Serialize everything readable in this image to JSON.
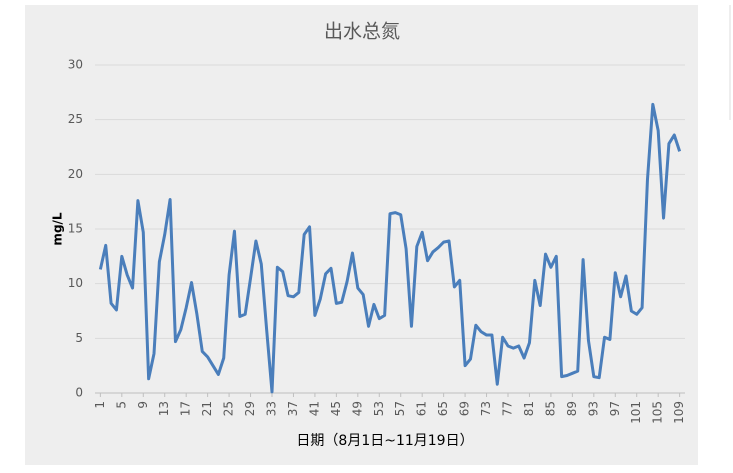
{
  "chart_data": {
    "type": "line",
    "title": "出水总氮",
    "x_label": "日期（8月1日~11月19日）",
    "y_label": "mg/L",
    "x": [
      1,
      2,
      3,
      4,
      5,
      6,
      7,
      8,
      9,
      10,
      11,
      12,
      13,
      14,
      15,
      16,
      17,
      18,
      19,
      20,
      21,
      22,
      23,
      24,
      25,
      26,
      27,
      28,
      29,
      30,
      31,
      32,
      33,
      34,
      35,
      36,
      37,
      38,
      39,
      40,
      41,
      42,
      43,
      44,
      45,
      46,
      47,
      48,
      49,
      50,
      51,
      52,
      53,
      54,
      55,
      56,
      57,
      58,
      59,
      60,
      61,
      62,
      63,
      64,
      65,
      66,
      67,
      68,
      69,
      70,
      71,
      72,
      73,
      74,
      75,
      76,
      77,
      78,
      79,
      80,
      81,
      82,
      83,
      84,
      85,
      86,
      87,
      88,
      89,
      90,
      91,
      92,
      93,
      94,
      95,
      96,
      97,
      98,
      99,
      100,
      101,
      102,
      103,
      104,
      105,
      106,
      107,
      108,
      109
    ],
    "series": [
      {
        "name": "出水总氮",
        "color": "#4a7ebb",
        "values": [
          11.3,
          13.5,
          8.2,
          7.6,
          12.5,
          10.8,
          9.6,
          17.6,
          14.7,
          1.3,
          3.6,
          12,
          14.5,
          17.7,
          4.7,
          5.8,
          7.8,
          10.1,
          7.2,
          3.8,
          3.3,
          2.5,
          1.7,
          3.2,
          10.8,
          14.8,
          7,
          7.2,
          10.5,
          13.9,
          11.8,
          5.8,
          0.1,
          11.5,
          11.1,
          8.9,
          8.8,
          9.2,
          14.5,
          15.2,
          7.1,
          8.6,
          10.9,
          11.4,
          8.2,
          8.3,
          10.2,
          12.8,
          9.6,
          9,
          6.1,
          8.1,
          6.8,
          7.1,
          16.4,
          16.5,
          16.3,
          13.2,
          6.1,
          13.4,
          14.7,
          12.1,
          12.9,
          13.3,
          13.8,
          13.9,
          9.7,
          10.3,
          2.5,
          3.1,
          6.2,
          5.6,
          5.3,
          5.3,
          0.8,
          5.1,
          4.3,
          4.1,
          4.3,
          3.2,
          4.6,
          10.3,
          8,
          12.7,
          11.5,
          12.5,
          1.5,
          1.6,
          1.8,
          2,
          12.2,
          4.8,
          1.5,
          1.4,
          5.1,
          4.9,
          11,
          8.8,
          10.7,
          7.5,
          7.2,
          7.8,
          19.5,
          26.4,
          24,
          16,
          22.8,
          23.6,
          22.1
        ]
      }
    ],
    "xlim": [
      0,
      110
    ],
    "xticks": [
      1,
      5,
      9,
      13,
      17,
      21,
      25,
      29,
      33,
      37,
      41,
      45,
      49,
      53,
      57,
      61,
      65,
      69,
      73,
      77,
      81,
      85,
      89,
      93,
      97,
      101,
      105,
      109
    ],
    "ylim": [
      0,
      30
    ],
    "yticks": [
      0,
      5,
      10,
      15,
      20,
      25,
      30
    ],
    "grid": true
  }
}
